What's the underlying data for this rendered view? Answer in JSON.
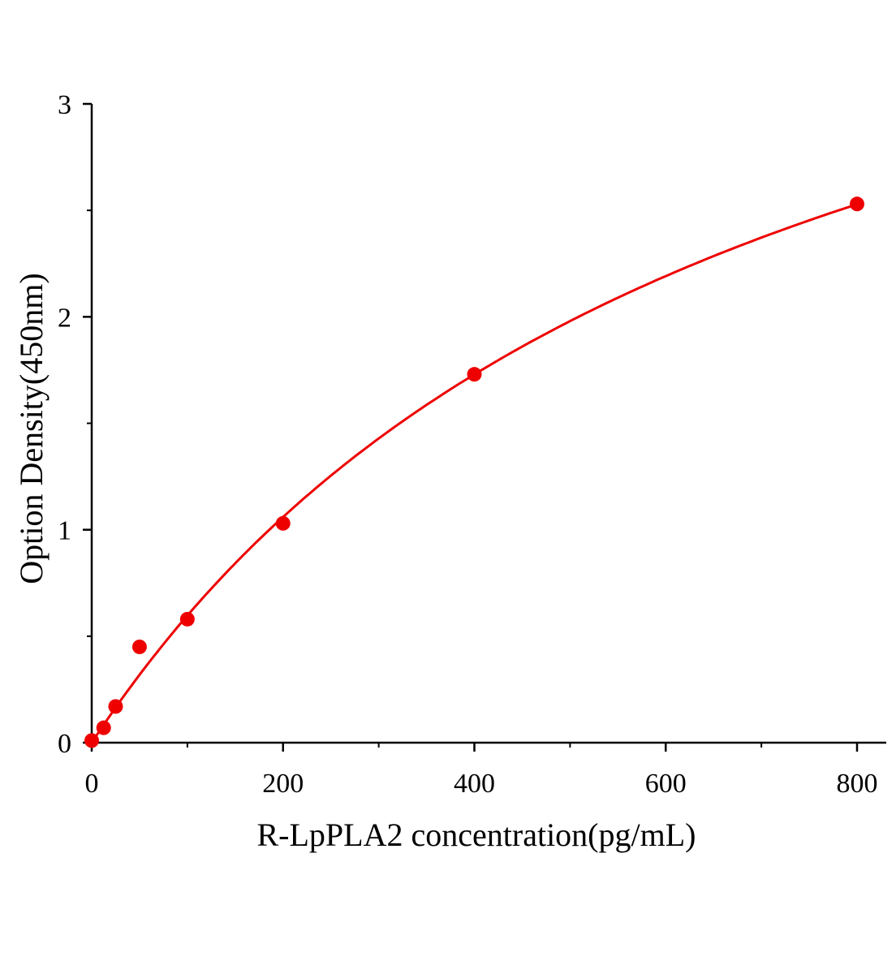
{
  "chart_data": {
    "type": "scatter",
    "title": "",
    "xlabel": "R-LpPLA2 concentration(pg/mL)",
    "ylabel": "Option Density(450nm)",
    "xlim": [
      0,
      800
    ],
    "ylim": [
      0,
      3
    ],
    "x_ticks": [
      "0",
      "200",
      "400",
      "600",
      "800"
    ],
    "y_ticks": [
      "0",
      "1",
      "2",
      "3"
    ],
    "grid": false,
    "legend": "none",
    "color": "#ee0000",
    "series": [
      {
        "x": [
          0,
          12.5,
          25,
          50,
          100,
          200,
          400,
          800
        ],
        "y": [
          0.01,
          0.07,
          0.17,
          0.45,
          0.58,
          1.03,
          1.73,
          2.53
        ]
      }
    ],
    "fit_curve": true
  }
}
